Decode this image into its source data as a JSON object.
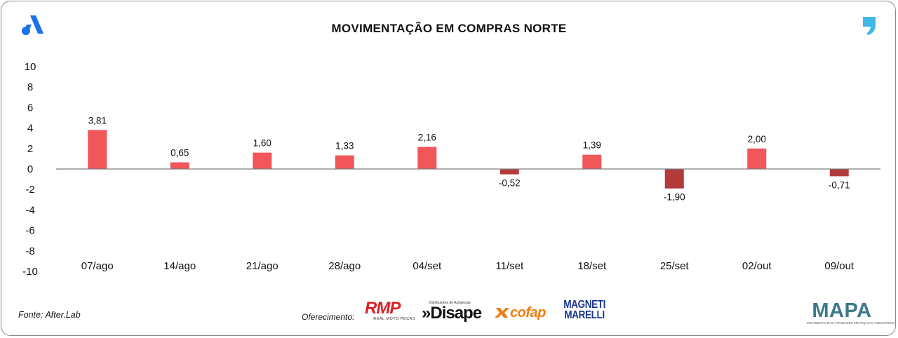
{
  "header": {
    "title": "MOVIMENTAÇÃO EM COMPRAS NORTE",
    "left_logo_icon": "a-brand-icon",
    "right_logo_icon": "comma-brand-icon"
  },
  "chart_data": {
    "type": "bar",
    "title": "MOVIMENTAÇÃO EM COMPRAS NORTE",
    "categories": [
      "07/ago",
      "14/ago",
      "21/ago",
      "28/ago",
      "04/set",
      "11/set",
      "18/set",
      "25/set",
      "02/out",
      "09/out"
    ],
    "values": [
      3.81,
      0.65,
      1.6,
      1.33,
      2.16,
      -0.52,
      1.39,
      -1.9,
      2.0,
      -0.71
    ],
    "value_labels": [
      "3,81",
      "0,65",
      "1,60",
      "1,33",
      "2,16",
      "-0,52",
      "1,39",
      "-1,90",
      "2,00",
      "-0,71"
    ],
    "y_ticks": [
      10,
      8,
      6,
      4,
      2,
      0,
      -2,
      -4,
      -6,
      -8,
      -10
    ],
    "ylim": [
      -10,
      10
    ],
    "xlabel": "",
    "ylabel": "",
    "grid": false,
    "colors": {
      "positive": "#f0565a",
      "negative": "#b33b3b",
      "zero_line": "#7f7f7f"
    }
  },
  "footer": {
    "source": "Fonte: After.Lab",
    "sponsor_label": "Oferecimento:",
    "sponsors": {
      "rmp": {
        "name": "RMP",
        "tagline": "REAL MOTO PEÇAS"
      },
      "disape": {
        "name": "»Disape",
        "tagline": "Distribuidora de Autopeças"
      },
      "cofap": {
        "name": "cofap"
      },
      "magneti": {
        "line1": "MAGNETI",
        "line2": "MARELLI"
      },
      "mapa": {
        "name": "MAPA",
        "tagline": "MOVIMENTO DAS ATIVIDADES EM PEÇAS E ACESSÓRIOS"
      }
    }
  }
}
